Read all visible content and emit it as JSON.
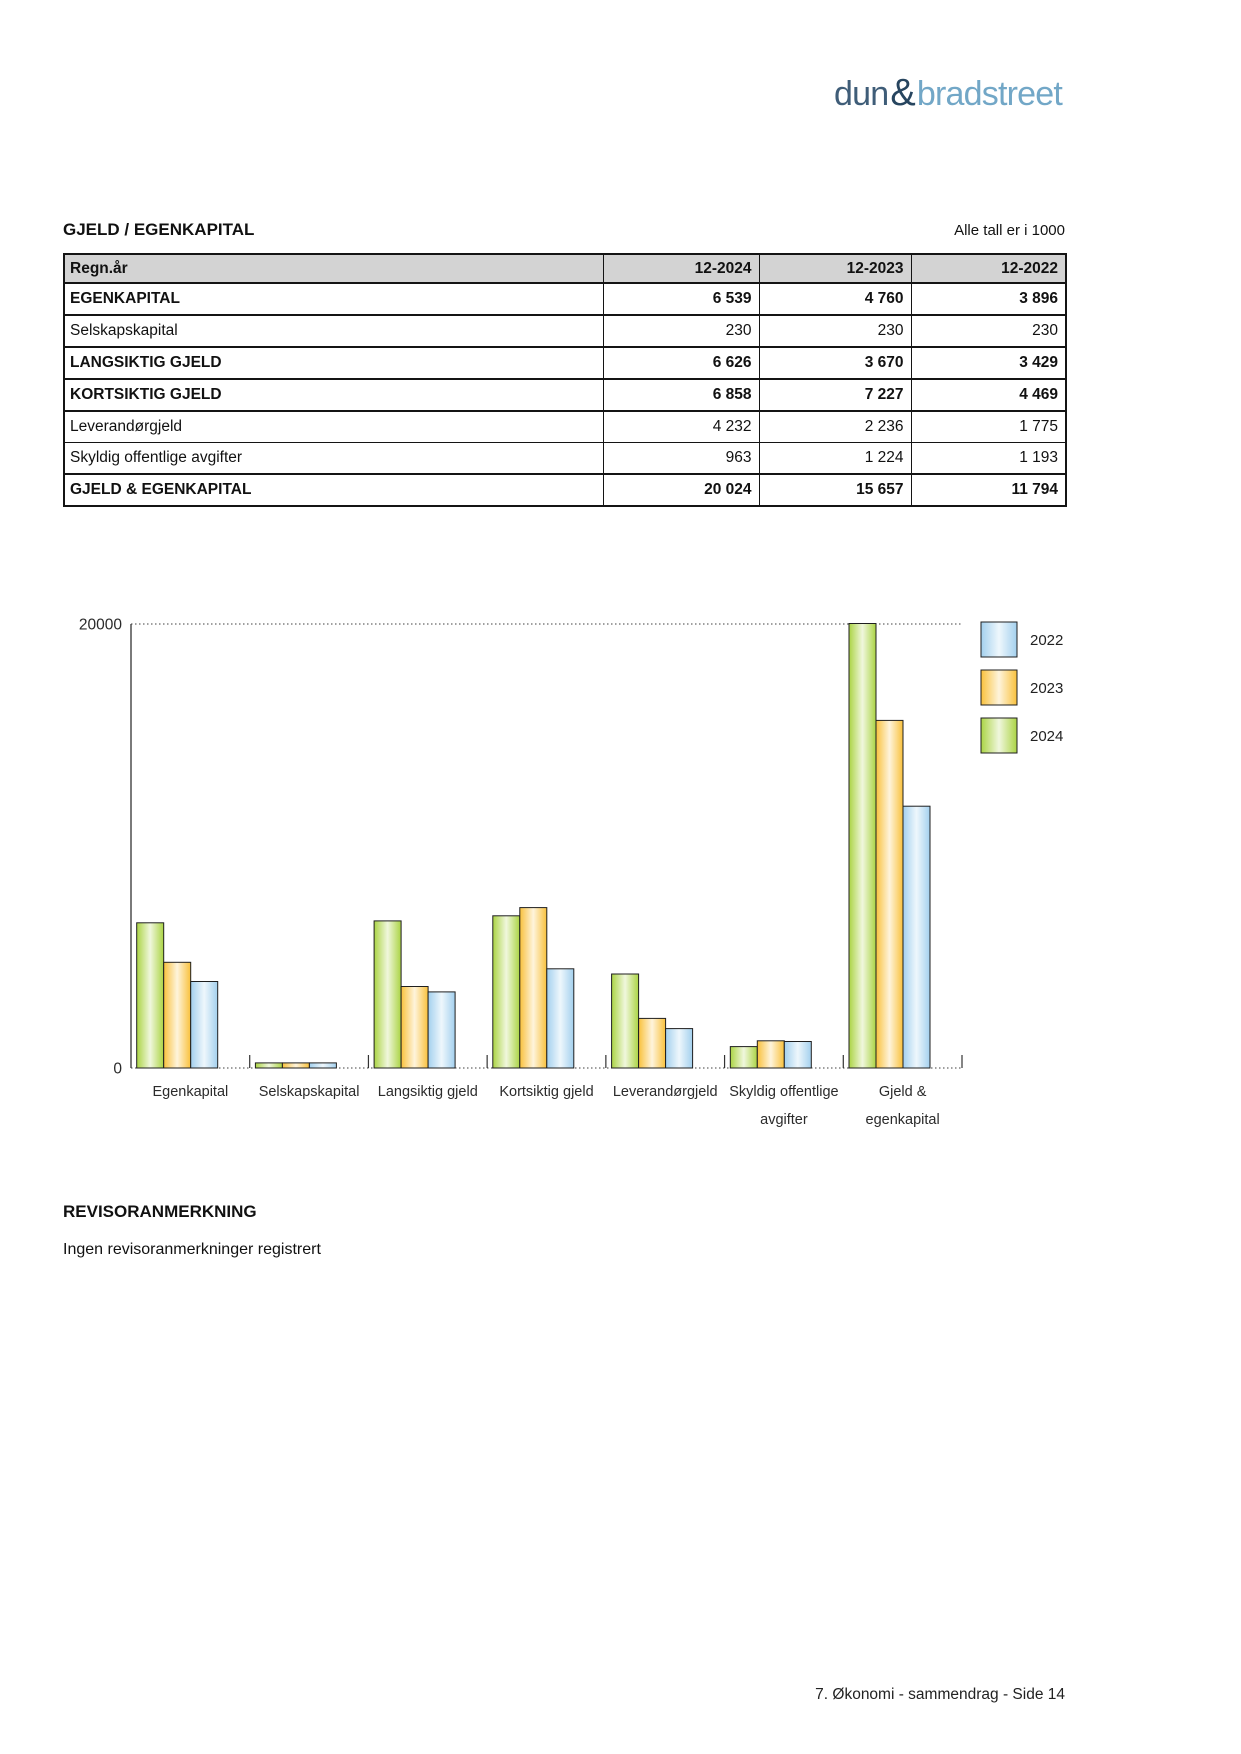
{
  "logo": {
    "part1": "dun",
    "amp": "&",
    "part2": "bradstreet"
  },
  "page": {
    "section_title": "GJELD / EGENKAPITAL",
    "units_note": "Alle tall er i 1000",
    "footer": "7. Økonomi - sammendrag - Side 14"
  },
  "table": {
    "columns": [
      "Regn.år",
      "12-2024",
      "12-2023",
      "12-2022"
    ],
    "rows": [
      {
        "label": "EGENKAPITAL",
        "bold": true,
        "values": [
          "6 539",
          "4 760",
          "3 896"
        ]
      },
      {
        "label": "Selskapskapital",
        "bold": false,
        "values": [
          "230",
          "230",
          "230"
        ]
      },
      {
        "label": "LANGSIKTIG GJELD",
        "bold": true,
        "values": [
          "6 626",
          "3 670",
          "3 429"
        ]
      },
      {
        "label": "KORTSIKTIG GJELD",
        "bold": true,
        "values": [
          "6 858",
          "7 227",
          "4 469"
        ]
      },
      {
        "label": "Leverandørgjeld",
        "bold": false,
        "values": [
          "4 232",
          "2 236",
          "1 775"
        ]
      },
      {
        "label": "Skyldig offentlige avgifter",
        "bold": false,
        "values": [
          "963",
          "1 224",
          "1 193"
        ]
      },
      {
        "label": "GJELD & EGENKAPITAL",
        "bold": true,
        "values": [
          "20 024",
          "15 657",
          "11 794"
        ]
      }
    ]
  },
  "chart_data": {
    "type": "bar",
    "title": "",
    "categories": [
      "Egenkapital",
      "Selskapskapital",
      "Langsiktig gjeld",
      "Kortsiktig gjeld",
      "Leverandørgjeld",
      "Skyldig offentlige\navgifter",
      "Gjeld &\negenkapital"
    ],
    "series": [
      {
        "name": "2024",
        "color": "#abd444",
        "values": [
          6539,
          230,
          6626,
          6858,
          4232,
          963,
          20024
        ]
      },
      {
        "name": "2023",
        "color": "#f9c13c",
        "values": [
          4760,
          230,
          3670,
          7227,
          2236,
          1224,
          15657
        ]
      },
      {
        "name": "2022",
        "color": "#a3d0ee",
        "values": [
          3896,
          230,
          3429,
          4469,
          1775,
          1193,
          11794
        ]
      }
    ],
    "legend_order": [
      "2022",
      "2023",
      "2024"
    ],
    "legend_position": "top-right",
    "ylim": [
      0,
      20000
    ],
    "yticks": [
      0,
      20000
    ],
    "grid": "dotted-line-at-max-only"
  },
  "auditor": {
    "title": "REVISORANMERKNING",
    "text": "Ingen revisoranmerkninger registrert"
  }
}
